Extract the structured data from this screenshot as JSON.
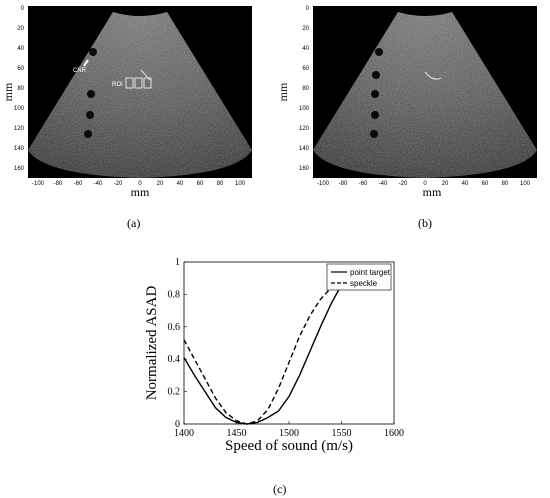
{
  "panel_a": {
    "xlabel": "mm",
    "ylabel": "mm",
    "xticks": [
      "-100",
      "-80",
      "-60",
      "-40",
      "-20",
      "0",
      "20",
      "40",
      "60",
      "80",
      "100"
    ],
    "yticks": [
      "0",
      "20",
      "40",
      "60",
      "80",
      "100",
      "120",
      "140",
      "160"
    ],
    "annotation_cnr": "CNR",
    "annotation_roi": "ROI",
    "caption": "(a)"
  },
  "panel_b": {
    "xlabel": "mm",
    "ylabel": "mm",
    "xticks": [
      "-100",
      "-80",
      "-60",
      "-40",
      "-20",
      "0",
      "20",
      "40",
      "60",
      "80",
      "100"
    ],
    "yticks": [
      "0",
      "20",
      "40",
      "60",
      "80",
      "100",
      "120",
      "140",
      "160"
    ],
    "caption": "(b)"
  },
  "chart_data": {
    "type": "line",
    "xlabel": "Speed of sound (m/s)",
    "ylabel": "Normalized ASAD",
    "xlim": [
      1400,
      1600
    ],
    "ylim": [
      0,
      1
    ],
    "xticks": [
      "1400",
      "1450",
      "1500",
      "1550",
      "1600"
    ],
    "yticks": [
      "0",
      "0.2",
      "0.4",
      "0.6",
      "0.8",
      "1"
    ],
    "legend_position": "top-right",
    "series": [
      {
        "name": "point target",
        "style": "solid",
        "x": [
          1400,
          1410,
          1420,
          1430,
          1440,
          1450,
          1460,
          1470,
          1480,
          1490,
          1500,
          1510,
          1520,
          1530,
          1540,
          1550
        ],
        "y": [
          0.41,
          0.3,
          0.2,
          0.1,
          0.04,
          0.01,
          0.0,
          0.01,
          0.04,
          0.08,
          0.17,
          0.3,
          0.45,
          0.6,
          0.74,
          0.86
        ]
      },
      {
        "name": "speckle",
        "style": "dashed",
        "x": [
          1400,
          1410,
          1420,
          1430,
          1440,
          1450,
          1460,
          1470,
          1480,
          1490,
          1500,
          1510,
          1520,
          1530,
          1540,
          1550
        ],
        "y": [
          0.52,
          0.4,
          0.28,
          0.16,
          0.07,
          0.02,
          0.0,
          0.02,
          0.09,
          0.22,
          0.38,
          0.54,
          0.67,
          0.77,
          0.84,
          0.89
        ]
      }
    ],
    "caption": "(c)"
  }
}
